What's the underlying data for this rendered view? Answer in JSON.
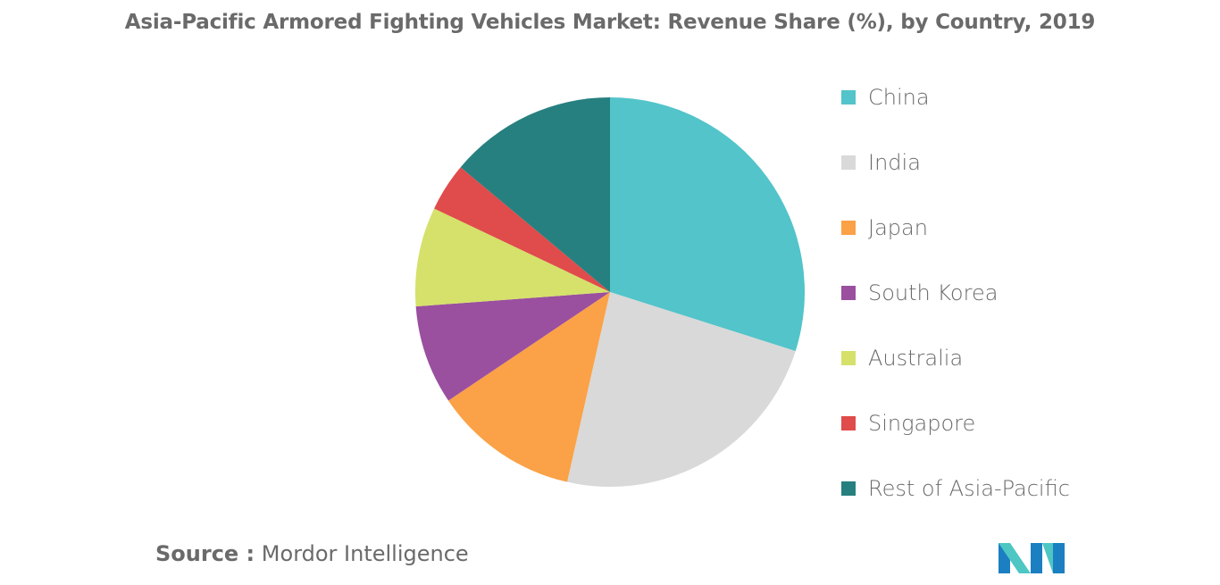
{
  "chart_data": {
    "type": "pie",
    "title": "Asia-Pacific Armored Fighting Vehicles Market: Revenue Share (%), by Country, 2019",
    "categories": [
      "China",
      "India",
      "Japan",
      "South Korea",
      "Australia",
      "Singapore",
      "Rest of Asia-Pacific"
    ],
    "values": [
      30.5,
      24.1,
      12.3,
      8.4,
      8.4,
      4.1,
      14.2
    ],
    "colors": [
      "#52c4ca",
      "#d9d9d9",
      "#fba147",
      "#9a4f9f",
      "#d5e16a",
      "#e04b4b",
      "#26807f"
    ],
    "start_angle_deg": 0,
    "direction": "clockwise",
    "legend_position": "right"
  },
  "source": {
    "key": "Source :",
    "value": "Mordor Intelligence"
  },
  "logo": {
    "icon": "mordor-intelligence-logo-icon",
    "colors": [
      "#1b7fc2",
      "#4ec6c4"
    ]
  }
}
